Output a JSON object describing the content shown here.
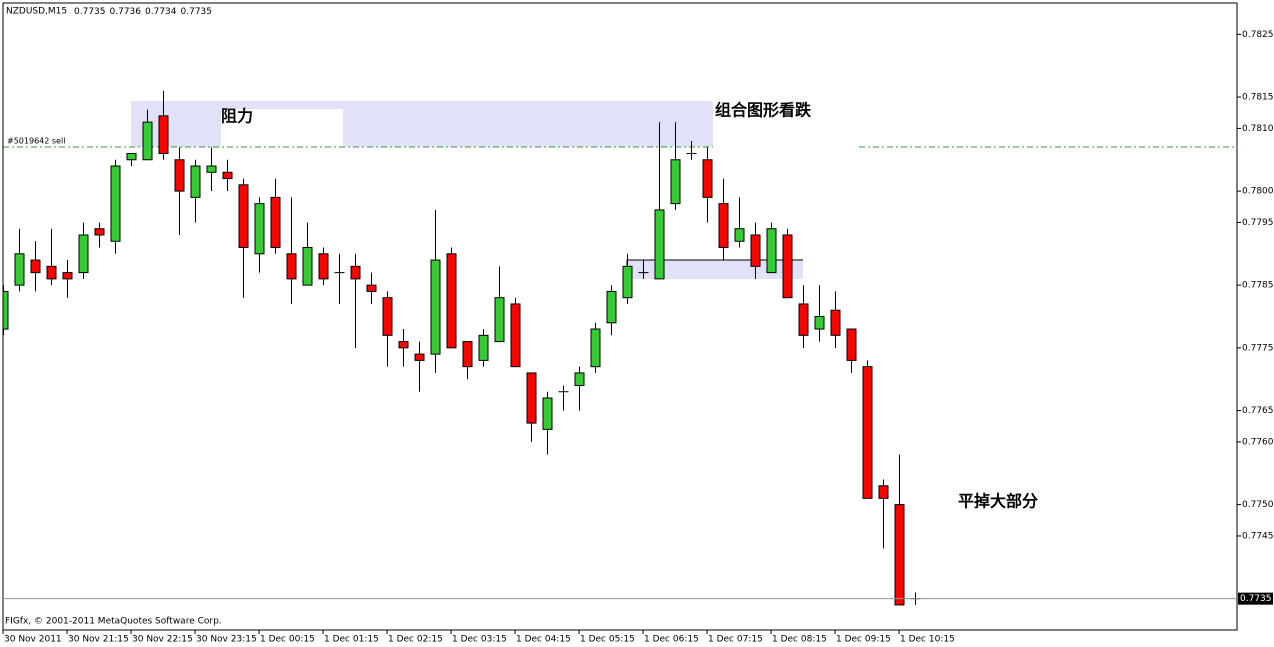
{
  "chart_data": {
    "type": "candlestick",
    "title": "NZDUSD,M15",
    "header_values": [
      0.7735,
      0.7736,
      0.7734,
      0.7735
    ],
    "copyright": "FIGfx, © 2001-2011 MetaQuotes Software Corp.",
    "order_label": "#5019642 sell",
    "annotations": [
      "阻力",
      "组合图形看跌",
      "平掉大部分"
    ],
    "categories": [
      "30 Nov 2011",
      null,
      null,
      null,
      "30 Nov 21:15",
      null,
      null,
      null,
      "30 Nov 22:15",
      null,
      null,
      null,
      "30 Nov 23:15",
      null,
      null,
      null,
      "1 Dec 00:15",
      null,
      null,
      null,
      "1 Dec 01:15",
      null,
      null,
      null,
      "1 Dec 02:15",
      null,
      null,
      null,
      "1 Dec 03:15",
      null,
      null,
      null,
      "1 Dec 04:15",
      null,
      null,
      null,
      "1 Dec 05:15",
      null,
      null,
      null,
      "1 Dec 06:15",
      null,
      null,
      null,
      "1 Dec 07:15",
      null,
      null,
      null,
      "1 Dec 08:15",
      null,
      null,
      null,
      "1 Dec 09:15",
      null,
      null,
      null,
      "1 Dec 10:15",
      null
    ],
    "open": [
      0.7778,
      0.7785,
      0.7789,
      0.7788,
      0.7787,
      0.7787,
      0.7794,
      0.7792,
      0.7805,
      0.7805,
      0.7812,
      0.7805,
      0.7799,
      0.7803,
      0.7803,
      0.7801,
      0.779,
      0.7799,
      0.779,
      0.7785,
      0.779,
      0.7787,
      0.7788,
      0.7785,
      0.7783,
      0.7776,
      0.7774,
      0.7774,
      0.779,
      0.7776,
      0.7773,
      0.7776,
      0.7782,
      0.7771,
      0.7762,
      0.7768,
      0.7769,
      0.7772,
      0.7779,
      0.7783,
      0.7787,
      0.7786,
      0.7798,
      0.7806,
      0.7805,
      0.7798,
      0.7792,
      0.7793,
      0.7787,
      0.7793,
      0.7782,
      0.7778,
      0.7781,
      0.7778,
      0.7772,
      0.7753,
      0.775,
      0.7735
    ],
    "high": [
      0.7785,
      0.7794,
      0.7792,
      0.7794,
      0.7789,
      0.7795,
      0.7795,
      0.7805,
      0.7806,
      0.7813,
      0.7816,
      0.7807,
      0.7805,
      0.7807,
      0.7805,
      0.7802,
      0.7799,
      0.7802,
      0.7799,
      0.7795,
      0.7791,
      0.779,
      0.779,
      0.7787,
      0.7784,
      0.7778,
      0.7776,
      0.7797,
      0.7791,
      0.7776,
      0.7778,
      0.7788,
      0.7783,
      0.7771,
      0.7768,
      0.7769,
      0.7772,
      0.7779,
      0.7785,
      0.779,
      0.7789,
      0.7811,
      0.7811,
      0.7808,
      0.7807,
      0.7802,
      0.7799,
      0.7795,
      0.7795,
      0.7794,
      0.7785,
      0.7785,
      0.7784,
      0.7778,
      0.7773,
      0.7754,
      0.7758,
      0.7736
    ],
    "low": [
      0.7777,
      0.7784,
      0.7784,
      0.7785,
      0.7783,
      0.7786,
      0.7791,
      0.779,
      0.7804,
      0.7805,
      0.7805,
      0.7793,
      0.7795,
      0.78,
      0.78,
      0.7783,
      0.7787,
      0.779,
      0.7782,
      0.7785,
      0.7785,
      0.7782,
      0.7775,
      0.7782,
      0.7772,
      0.7772,
      0.7768,
      0.7771,
      0.7775,
      0.777,
      0.7772,
      0.7776,
      0.7772,
      0.776,
      0.7758,
      0.7765,
      0.7765,
      0.7771,
      0.7777,
      0.7782,
      0.7786,
      0.7786,
      0.7797,
      0.7805,
      0.7795,
      0.7789,
      0.7791,
      0.7786,
      0.7787,
      0.7783,
      0.7775,
      0.7776,
      0.7775,
      0.7771,
      0.7751,
      0.7743,
      0.7734,
      0.7734
    ],
    "close": [
      0.7784,
      0.779,
      0.7787,
      0.7786,
      0.7786,
      0.7793,
      0.7793,
      0.7804,
      0.7806,
      0.7811,
      0.7806,
      0.78,
      0.7804,
      0.7804,
      0.7802,
      0.7791,
      0.7798,
      0.7791,
      0.7786,
      0.7791,
      0.7786,
      0.7787,
      0.7786,
      0.7784,
      0.7777,
      0.7775,
      0.7773,
      0.7789,
      0.7775,
      0.7772,
      0.7777,
      0.7783,
      0.7772,
      0.7763,
      0.7767,
      0.7768,
      0.7771,
      0.7778,
      0.7784,
      0.7788,
      0.7787,
      0.7797,
      0.7805,
      0.7806,
      0.7799,
      0.7791,
      0.7794,
      0.7788,
      0.7794,
      0.7783,
      0.7777,
      0.778,
      0.7777,
      0.7773,
      0.7751,
      0.7751,
      0.7734,
      0.7735
    ],
    "up_color": "#33cc33",
    "down_color": "#ff0000",
    "ylim": [
      0.773,
      0.783
    ],
    "yticks": [
      0.7825,
      0.7815,
      {
        "value": 0.781,
        "label": "0.7810"
      },
      {
        "value": 0.78,
        "label": "0.7800"
      },
      0.7795,
      0.7785,
      0.7775,
      0.7765,
      {
        "value": 0.776,
        "label": "0.7760"
      },
      {
        "value": 0.775,
        "label": "0.7750"
      },
      0.7745
    ],
    "last_price": 0.7735
  }
}
